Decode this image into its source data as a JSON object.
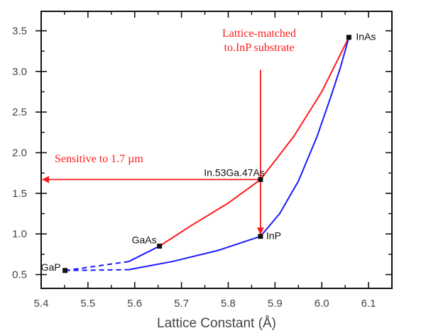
{
  "chart_data": {
    "type": "line",
    "title": "",
    "xlabel": "Lattice Constant (Å)",
    "ylabel": "",
    "xlim": [
      5.4,
      6.15
    ],
    "ylim": [
      0.33,
      3.74
    ],
    "xticks": [
      5.4,
      5.5,
      5.6,
      5.7,
      5.8,
      5.9,
      6.0,
      6.1
    ],
    "xtick_labels": [
      "5.4",
      "5.5",
      "5.6",
      "5.7",
      "5.8",
      "5.9",
      "6.0",
      "6.1"
    ],
    "yticks": [
      0.5,
      1.0,
      1.5,
      2.0,
      2.5,
      3.0,
      3.5
    ],
    "ytick_labels": [
      "0.5",
      "1.0",
      "1.5",
      "2.0",
      "2.5",
      "3.0",
      "3.5"
    ],
    "grid": false,
    "colors": {
      "red": "#ff1a1a",
      "blue": "#1a1aff",
      "axis": "#111111"
    },
    "points": [
      {
        "label": "GaP",
        "x": 5.451,
        "y": 0.55
      },
      {
        "label": "GaAs",
        "x": 5.653,
        "y": 0.85
      },
      {
        "label": "InP",
        "x": 5.869,
        "y": 0.97
      },
      {
        "label": "InAs",
        "x": 6.058,
        "y": 3.42
      },
      {
        "label": "In.53Ga.47As",
        "x": 5.869,
        "y": 1.67
      }
    ],
    "series": [
      {
        "name": "GaAs-InAs",
        "color": "red",
        "style": "solid",
        "x": [
          5.653,
          5.72,
          5.8,
          5.869,
          5.94,
          6.0,
          6.058
        ],
        "y": [
          0.85,
          1.1,
          1.38,
          1.67,
          2.2,
          2.75,
          3.42
        ]
      },
      {
        "name": "InP-InAs",
        "color": "blue",
        "style": "solid",
        "x": [
          5.869,
          5.91,
          5.95,
          5.99,
          6.02,
          6.04,
          6.058
        ],
        "y": [
          0.97,
          1.25,
          1.65,
          2.2,
          2.7,
          3.05,
          3.42
        ]
      },
      {
        "name": "GaAs-InP (direct)",
        "color": "blue",
        "style": "solid",
        "x": [
          5.587,
          5.653
        ],
        "y": [
          0.66,
          0.85
        ]
      },
      {
        "name": "GaP-InP (direct)",
        "color": "blue",
        "style": "solid",
        "x": [
          5.587,
          5.68,
          5.78,
          5.869
        ],
        "y": [
          0.56,
          0.66,
          0.8,
          0.97
        ]
      },
      {
        "name": "GaP-GaAs (indirect)",
        "color": "blue",
        "style": "dashed",
        "x": [
          5.451,
          5.587
        ],
        "y": [
          0.55,
          0.66
        ]
      },
      {
        "name": "GaP-InP (indirect)",
        "color": "blue",
        "style": "dashed",
        "x": [
          5.451,
          5.587
        ],
        "y": [
          0.55,
          0.56
        ]
      }
    ],
    "annotations": [
      {
        "text": "Lattice-matched",
        "line2": "to.InP substrate",
        "arrow_from": [
          5.869,
          3.02
        ],
        "arrow_to": [
          5.869,
          1.0
        ]
      },
      {
        "text": "Sensitive to 1.7 µm",
        "arrow_from": [
          5.869,
          1.67
        ],
        "arrow_to": [
          5.4,
          1.67
        ]
      }
    ]
  }
}
